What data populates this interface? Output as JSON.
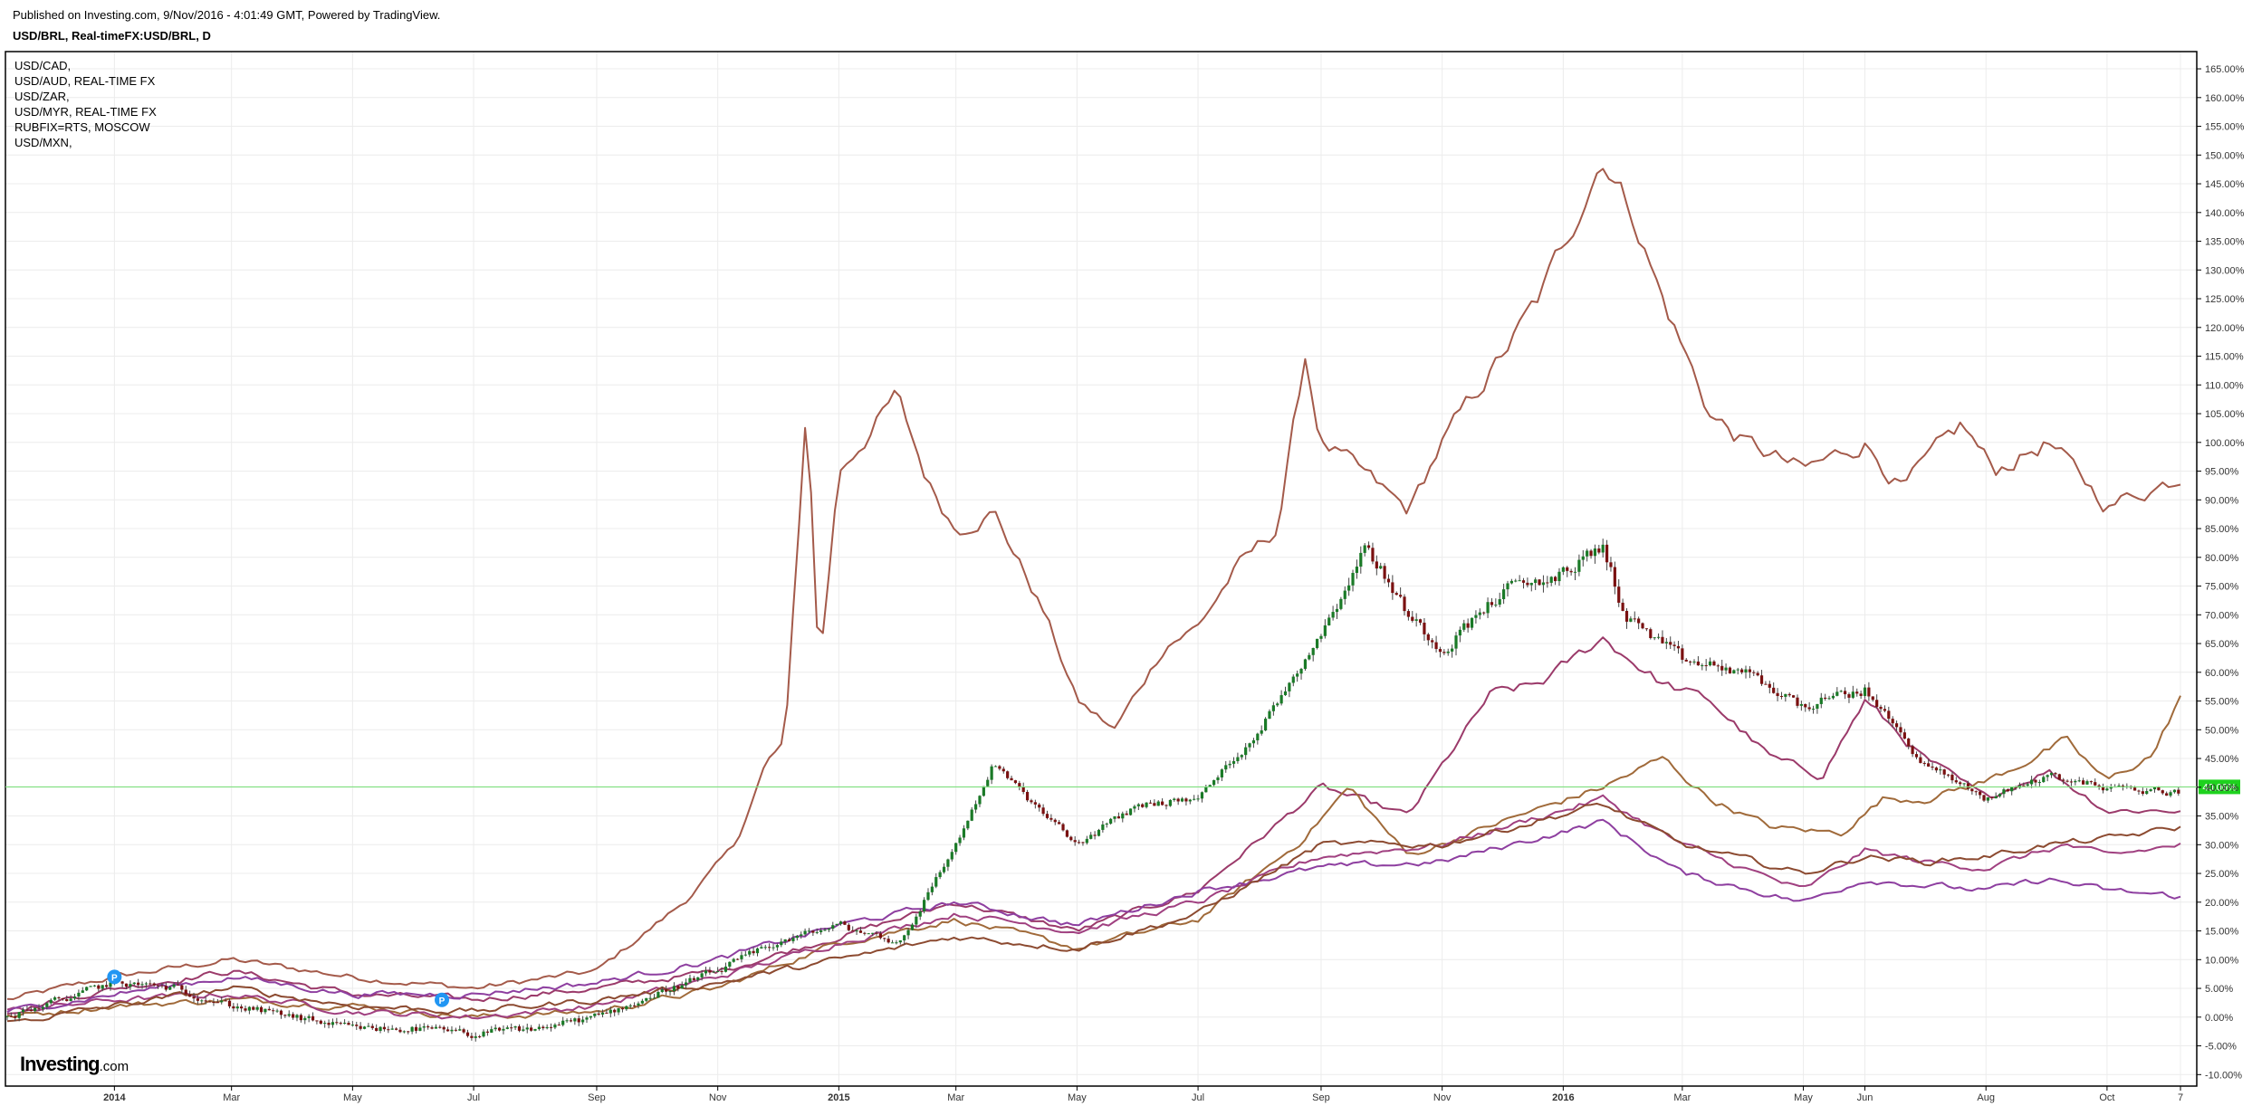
{
  "header": {
    "published": "Published on Investing.com, 9/Nov/2016 - 4:01:49 GMT, Powered by TradingView.",
    "symbol": "USD/BRL, Real-timeFX:USD/BRL, D"
  },
  "legend": [
    "USD/CAD,",
    "USD/AUD, REAL-TIME FX",
    "USD/ZAR,",
    "USD/MYR, REAL-TIME FX",
    "RUBFIX=RTS, MOSCOW",
    "USD/MXN,"
  ],
  "brand": {
    "main": "Investing",
    "suffix": ".com"
  },
  "colors": {
    "grid": "#ececec",
    "axis": "#000000",
    "candle_up": "#1a7a27",
    "candle_down": "#7a1010",
    "current_line": "#7fe07f",
    "current_badge": "#1ed21e",
    "marker": "#2196f3"
  },
  "chart_data": {
    "type": "line",
    "title": "USD/BRL, Real-timeFX:USD/BRL, D",
    "y_unit": "percent change",
    "ylim": [
      -12,
      168
    ],
    "grid": true,
    "legend_position": "top-left",
    "x_ticks": [
      {
        "date": "2014-01-01",
        "label": "2014",
        "bold": true
      },
      {
        "date": "2014-03-01",
        "label": "Mar",
        "bold": false
      },
      {
        "date": "2014-05-01",
        "label": "May",
        "bold": false
      },
      {
        "date": "2014-07-01",
        "label": "Jul",
        "bold": false
      },
      {
        "date": "2014-09-01",
        "label": "Sep",
        "bold": false
      },
      {
        "date": "2014-11-01",
        "label": "Nov",
        "bold": false
      },
      {
        "date": "2015-01-01",
        "label": "2015",
        "bold": true
      },
      {
        "date": "2015-03-01",
        "label": "Mar",
        "bold": false
      },
      {
        "date": "2015-05-01",
        "label": "May",
        "bold": false
      },
      {
        "date": "2015-07-01",
        "label": "Jul",
        "bold": false
      },
      {
        "date": "2015-09-01",
        "label": "Sep",
        "bold": false
      },
      {
        "date": "2015-11-01",
        "label": "Nov",
        "bold": false
      },
      {
        "date": "2016-01-01",
        "label": "2016",
        "bold": true
      },
      {
        "date": "2016-03-01",
        "label": "Mar",
        "bold": false
      },
      {
        "date": "2016-05-01",
        "label": "May",
        "bold": false
      },
      {
        "date": "2016-06-01",
        "label": "Jun",
        "bold": false
      },
      {
        "date": "2016-08-01",
        "label": "Aug",
        "bold": false
      },
      {
        "date": "2016-10-01",
        "label": "Oct",
        "bold": false
      },
      {
        "date": "2016-11-07",
        "label": "7",
        "bold": false
      }
    ],
    "y_ticks": [
      -10,
      -5,
      0,
      5,
      10,
      15,
      20,
      25,
      30,
      35,
      40,
      45,
      50,
      55,
      60,
      65,
      70,
      75,
      80,
      85,
      90,
      95,
      100,
      105,
      110,
      115,
      120,
      125,
      130,
      135,
      140,
      145,
      150,
      155,
      160,
      165
    ],
    "y_tick_labels": [
      "-10.00%",
      "-5.00%",
      "0.00%",
      "5.00%",
      "10.00%",
      "15.00%",
      "20.00%",
      "25.00%",
      "30.00%",
      "35.00%",
      "40.00%",
      "45.00%",
      "50.00%",
      "55.00%",
      "60.00%",
      "65.00%",
      "70.00%",
      "75.00%",
      "80.00%",
      "85.00%",
      "90.00%",
      "95.00%",
      "100.00%",
      "105.00%",
      "110.00%",
      "115.00%",
      "120.00%",
      "125.00%",
      "130.00%",
      "135.00%",
      "140.00%",
      "145.00%",
      "150.00%",
      "155.00%",
      "160.00%",
      "165.00%"
    ],
    "current": {
      "value": 40.06,
      "label": "40.06%"
    },
    "markers": [
      {
        "date": "2014-01-01",
        "y": 7,
        "label": "P"
      },
      {
        "date": "2014-06-15",
        "y": 3,
        "label": "P"
      }
    ],
    "candles": {
      "name": "USD/BRL",
      "x": [
        "2013-11-08",
        "2014-01-01",
        "2014-02-01",
        "2014-03-01",
        "2014-04-01",
        "2014-05-01",
        "2014-06-01",
        "2014-07-01",
        "2014-08-01",
        "2014-09-01",
        "2014-10-01",
        "2014-11-01",
        "2014-12-01",
        "2015-01-01",
        "2015-02-01",
        "2015-03-01",
        "2015-03-20",
        "2015-04-15",
        "2015-05-01",
        "2015-06-01",
        "2015-07-01",
        "2015-08-01",
        "2015-09-01",
        "2015-09-24",
        "2015-10-15",
        "2015-11-01",
        "2015-12-01",
        "2016-01-01",
        "2016-01-21",
        "2016-02-01",
        "2016-03-01",
        "2016-04-01",
        "2016-05-01",
        "2016-06-01",
        "2016-07-01",
        "2016-08-01",
        "2016-09-01",
        "2016-10-01",
        "2016-11-07"
      ],
      "y": [
        0,
        6,
        5,
        2,
        0,
        -2,
        -2,
        -3,
        -2,
        0,
        4,
        8,
        13,
        16,
        13,
        30,
        44,
        35,
        30,
        37,
        38,
        50,
        67,
        82,
        70,
        64,
        74,
        77,
        82,
        70,
        62,
        60,
        54,
        57,
        44,
        38,
        42,
        40,
        39
      ]
    },
    "series": [
      {
        "name": "RUBFIX=RTS, MOSCOW",
        "color": "#a45a4a",
        "x": [
          "2013-11-08",
          "2014-01-01",
          "2014-03-01",
          "2014-05-01",
          "2014-07-01",
          "2014-09-01",
          "2014-10-15",
          "2014-11-10",
          "2014-11-25",
          "2014-12-05",
          "2014-12-16",
          "2014-12-22",
          "2015-01-01",
          "2015-01-30",
          "2015-02-15",
          "2015-03-01",
          "2015-03-20",
          "2015-04-15",
          "2015-05-01",
          "2015-05-20",
          "2015-06-15",
          "2015-07-01",
          "2015-07-20",
          "2015-08-10",
          "2015-08-24",
          "2015-09-01",
          "2015-09-20",
          "2015-10-15",
          "2015-11-01",
          "2015-12-01",
          "2015-12-20",
          "2016-01-21",
          "2016-02-05",
          "2016-02-20",
          "2016-03-15",
          "2016-04-01",
          "2016-05-01",
          "2016-06-01",
          "2016-06-20",
          "2016-07-20",
          "2016-08-05",
          "2016-09-01",
          "2016-10-01",
          "2016-11-07"
        ],
        "y": [
          3,
          7,
          10,
          7,
          5,
          8,
          20,
          30,
          44,
          48,
          108,
          60,
          95,
          108,
          93,
          85,
          88,
          70,
          55,
          50,
          65,
          68,
          78,
          85,
          115,
          100,
          95,
          88,
          100,
          115,
          125,
          150,
          140,
          125,
          105,
          100,
          95,
          100,
          92,
          103,
          95,
          100,
          89,
          94
        ]
      },
      {
        "name": "USD/ZAR,",
        "color": "#9b3a6a",
        "x": [
          "2013-11-08",
          "2014-01-01",
          "2014-03-01",
          "2014-05-01",
          "2014-07-01",
          "2014-09-01",
          "2014-11-01",
          "2015-01-01",
          "2015-03-01",
          "2015-05-01",
          "2015-07-01",
          "2015-09-01",
          "2015-10-15",
          "2015-11-25",
          "2015-12-20",
          "2016-01-21",
          "2016-02-20",
          "2016-03-15",
          "2016-04-15",
          "2016-05-10",
          "2016-06-01",
          "2016-07-01",
          "2016-08-01",
          "2016-09-01",
          "2016-10-01",
          "2016-11-07"
        ],
        "y": [
          1,
          5,
          8,
          4,
          3,
          5,
          8,
          14,
          20,
          15,
          22,
          40,
          35,
          56,
          58,
          66,
          58,
          55,
          45,
          42,
          55,
          45,
          38,
          43,
          36,
          36
        ]
      },
      {
        "name": "USD/MYR, REAL-TIME FX",
        "color": "#a06a3a",
        "x": [
          "2013-11-08",
          "2014-01-01",
          "2014-03-01",
          "2014-05-01",
          "2014-07-01",
          "2014-09-01",
          "2014-11-01",
          "2015-01-01",
          "2015-03-01",
          "2015-05-01",
          "2015-07-01",
          "2015-08-20",
          "2015-09-15",
          "2015-10-15",
          "2015-12-01",
          "2016-01-21",
          "2016-02-20",
          "2016-03-15",
          "2016-04-15",
          "2016-05-20",
          "2016-06-10",
          "2016-07-01",
          "2016-08-01",
          "2016-09-10",
          "2016-10-01",
          "2016-10-25",
          "2016-11-07"
        ],
        "y": [
          0,
          2,
          3,
          2,
          0,
          1,
          5,
          13,
          17,
          12,
          17,
          30,
          40,
          28,
          34,
          40,
          45,
          38,
          33,
          32,
          38,
          38,
          41,
          48,
          41,
          46,
          56
        ]
      },
      {
        "name": "USD/MXN,",
        "color": "#a04080",
        "x": [
          "2013-11-08",
          "2014-01-01",
          "2014-03-01",
          "2014-05-01",
          "2014-07-01",
          "2014-09-01",
          "2014-11-01",
          "2015-01-01",
          "2015-03-01",
          "2015-05-01",
          "2015-07-01",
          "2015-09-01",
          "2015-11-01",
          "2016-01-21",
          "2016-03-01",
          "2016-05-01",
          "2016-06-01",
          "2016-07-01",
          "2016-08-01",
          "2016-09-10",
          "2016-10-01",
          "2016-11-07"
        ],
        "y": [
          1,
          3,
          4,
          1,
          0,
          2,
          7,
          13,
          18,
          15,
          20,
          28,
          30,
          38,
          30,
          22,
          29,
          27,
          26,
          30,
          28,
          30
        ]
      },
      {
        "name": "USD/CAD,",
        "color": "#8e3fa0",
        "x": [
          "2013-11-08",
          "2014-01-01",
          "2014-03-01",
          "2014-05-01",
          "2014-07-01",
          "2014-09-01",
          "2014-11-01",
          "2015-01-01",
          "2015-03-01",
          "2015-05-01",
          "2015-07-01",
          "2015-09-01",
          "2015-11-01",
          "2016-01-21",
          "2016-03-01",
          "2016-05-01",
          "2016-06-01",
          "2016-07-01",
          "2016-08-01",
          "2016-09-01",
          "2016-10-01",
          "2016-11-07"
        ],
        "y": [
          1,
          4,
          7,
          4,
          4,
          6,
          10,
          16,
          20,
          16,
          22,
          26,
          27,
          34,
          25,
          20,
          24,
          23,
          22,
          24,
          22,
          21
        ]
      },
      {
        "name": "USD/AUD, REAL-TIME FX",
        "color": "#8c4a30",
        "x": [
          "2013-11-08",
          "2014-01-01",
          "2014-03-01",
          "2014-05-01",
          "2014-07-01",
          "2014-09-01",
          "2014-11-01",
          "2015-01-01",
          "2015-03-01",
          "2015-05-01",
          "2015-07-01",
          "2015-09-01",
          "2015-11-01",
          "2016-01-21",
          "2016-03-01",
          "2016-05-01",
          "2016-06-01",
          "2016-07-01",
          "2016-08-01",
          "2016-09-01",
          "2016-10-01",
          "2016-11-07"
        ],
        "y": [
          -1,
          2,
          5,
          2,
          1,
          3,
          6,
          10,
          14,
          12,
          18,
          30,
          30,
          37,
          30,
          25,
          28,
          27,
          28,
          30,
          31,
          33
        ]
      }
    ]
  }
}
